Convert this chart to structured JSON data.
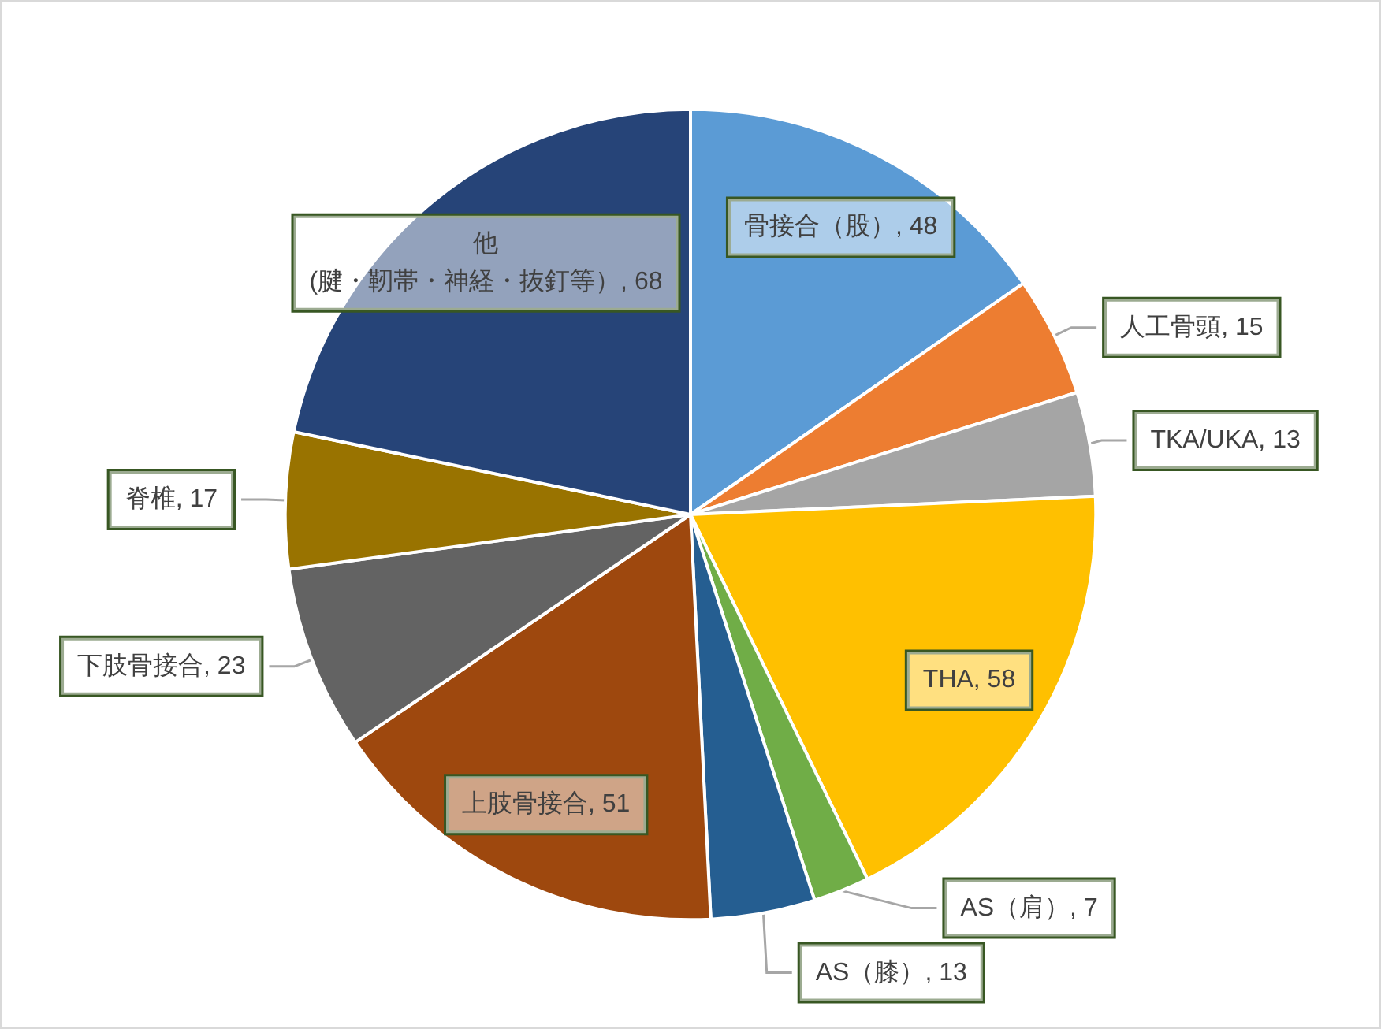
{
  "chart_data": {
    "type": "pie",
    "categories": [
      "骨接合（股）",
      "人工骨頭",
      "TKA/UKA",
      "THA",
      "AS（肩）",
      "AS（膝）",
      "上肢骨接合",
      "下肢骨接合",
      "脊椎",
      "他\n(腱・靭帯・神経・抜釘等）"
    ],
    "values": [
      48,
      15,
      13,
      58,
      7,
      13,
      51,
      23,
      17,
      68
    ],
    "value_labels": [
      ", 48",
      ", 15",
      ", 13",
      ", 58",
      ", 7",
      ", 13",
      ", 51",
      ", 23",
      ", 17",
      ", 68"
    ],
    "colors": [
      "#5b9bd5",
      "#ed7d31",
      "#a5a5a5",
      "#ffc000",
      "#70ad47",
      "#255e91",
      "#9e480e",
      "#636363",
      "#997300",
      "#264478"
    ]
  }
}
